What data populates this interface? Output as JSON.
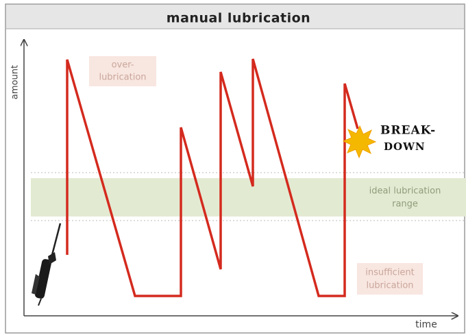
{
  "header": {
    "title": "manual lubrication"
  },
  "axes": {
    "y_label": "amount",
    "x_label": "time"
  },
  "labels": {
    "over": [
      "over-",
      "lubrication"
    ],
    "ideal": [
      "ideal lubrication",
      "range"
    ],
    "insufficient": [
      "insufficient",
      "lubrication"
    ],
    "breakdown": [
      "BREAK-",
      "DOWN"
    ]
  }
}
